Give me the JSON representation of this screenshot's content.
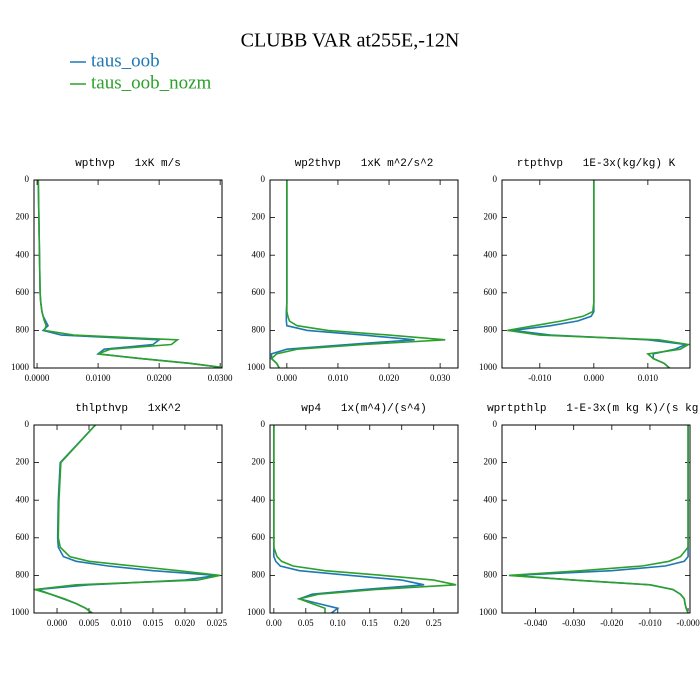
{
  "title": "CLUBB VAR at255E,-12N",
  "chart_data": [
    {
      "type": "line",
      "title": "wpthvp   1xK m/s",
      "y": [
        0,
        200,
        400,
        600,
        650,
        700,
        725,
        750,
        775,
        800,
        825,
        850,
        875,
        900,
        925,
        950,
        975,
        1000
      ],
      "ylim": [
        1000,
        0
      ],
      "yticks": [
        0,
        200,
        400,
        600,
        800,
        1000
      ],
      "xlim": [
        -0.0005,
        0.0303
      ],
      "xticks": [
        {
          "value": 0,
          "label": "0.0000"
        },
        {
          "value": 0.01,
          "label": "0.0100"
        },
        {
          "value": 0.02,
          "label": "0.0200"
        },
        {
          "value": 0.03,
          "label": "0.0300"
        }
      ],
      "series": [
        {
          "name": "taus_oob",
          "color": "#1f77b4",
          "values": [
            0.0002,
            0.0003,
            0.0004,
            0.0005,
            0.0006,
            0.0008,
            0.001,
            0.0014,
            0.0018,
            0.001,
            0.004,
            0.02,
            0.019,
            0.011,
            0.01,
            0.017,
            0.025,
            0.031
          ]
        },
        {
          "name": "taus_oob_nozm",
          "color": "#2ca02c",
          "values": [
            0.0002,
            0.0003,
            0.0004,
            0.0005,
            0.0006,
            0.0008,
            0.001,
            0.0012,
            0.0015,
            0.0012,
            0.006,
            0.023,
            0.022,
            0.012,
            0.01,
            0.017,
            0.025,
            0.031
          ]
        }
      ]
    },
    {
      "type": "line",
      "title": "wp2thvp   1xK m^2/s^2",
      "y": [
        0,
        200,
        400,
        600,
        650,
        700,
        725,
        750,
        775,
        800,
        825,
        850,
        875,
        900,
        925,
        950,
        975,
        1000
      ],
      "ylim": [
        1000,
        0
      ],
      "yticks": [
        0,
        200,
        400,
        600,
        800,
        1000
      ],
      "xlim": [
        -0.0033,
        0.0335
      ],
      "xticks": [
        {
          "value": 0,
          "label": "0.000"
        },
        {
          "value": 0.01,
          "label": "0.010"
        },
        {
          "value": 0.02,
          "label": "0.020"
        },
        {
          "value": 0.03,
          "label": "0.030"
        }
      ],
      "series": [
        {
          "name": "taus_oob",
          "color": "#1f77b4",
          "values": [
            0,
            0,
            0,
            0,
            0,
            -0.0001,
            -0.0001,
            -0.0001,
            0,
            0.004,
            0.015,
            0.025,
            0.012,
            0,
            -0.003,
            -0.003,
            -0.002,
            -0.0015
          ]
        },
        {
          "name": "taus_oob_nozm",
          "color": "#2ca02c",
          "values": [
            0,
            0,
            0,
            0,
            0,
            0,
            0.0002,
            0.0005,
            0.002,
            0.008,
            0.02,
            0.031,
            0.015,
            0.002,
            -0.002,
            -0.003,
            -0.002,
            -0.0015
          ]
        }
      ]
    },
    {
      "type": "line",
      "title": "rtpthvp   1E-3x(kg/kg) K",
      "y": [
        0,
        200,
        400,
        600,
        650,
        700,
        725,
        750,
        775,
        800,
        825,
        850,
        875,
        900,
        925,
        950,
        975,
        1000
      ],
      "ylim": [
        1000,
        0
      ],
      "yticks": [
        0,
        200,
        400,
        600,
        800,
        1000
      ],
      "xlim": [
        -0.017,
        0.0178
      ],
      "xticks": [
        {
          "value": -0.01,
          "label": "-0.010"
        },
        {
          "value": 0,
          "label": "0.000"
        },
        {
          "value": 0.01,
          "label": "0.010"
        }
      ],
      "series": [
        {
          "name": "taus_oob",
          "color": "#1f77b4",
          "values": [
            0,
            0,
            0,
            0,
            0,
            0,
            -0.0005,
            -0.003,
            -0.008,
            -0.015,
            -0.008,
            0.01,
            0.017,
            0.015,
            0.011,
            0.011,
            0.013,
            0.014
          ]
        },
        {
          "name": "taus_oob_nozm",
          "color": "#2ca02c",
          "values": [
            0,
            0,
            0,
            0,
            0,
            -0.0002,
            -0.002,
            -0.006,
            -0.011,
            -0.016,
            -0.01,
            0.012,
            0.0175,
            0.016,
            0.01,
            0.011,
            0.013,
            0.014
          ]
        }
      ]
    },
    {
      "type": "line",
      "title": "thlpthvp   1xK^2",
      "y": [
        0,
        200,
        400,
        600,
        650,
        700,
        725,
        750,
        775,
        800,
        825,
        850,
        875,
        900,
        925,
        950,
        975,
        1000
      ],
      "ylim": [
        1000,
        0
      ],
      "yticks": [
        0,
        200,
        400,
        600,
        800,
        1000
      ],
      "xlim": [
        -0.0036,
        0.0258
      ],
      "xticks": [
        {
          "value": 0,
          "label": "0.000"
        },
        {
          "value": 0.005,
          "label": "0.005"
        },
        {
          "value": 0.01,
          "label": "0.010"
        },
        {
          "value": 0.015,
          "label": "0.015"
        },
        {
          "value": 0.02,
          "label": "0.020"
        },
        {
          "value": 0.025,
          "label": "0.025"
        }
      ],
      "series": [
        {
          "name": "taus_oob",
          "color": "#1f77b4",
          "values": [
            0.006,
            0.0005,
            0.0002,
            0.0001,
            0.0002,
            0.001,
            0.003,
            0.008,
            0.015,
            0.025,
            0.02,
            0.005,
            -0.003,
            -0.001,
            0.001,
            0.003,
            0.0045,
            0.0055
          ]
        },
        {
          "name": "taus_oob_nozm",
          "color": "#2ca02c",
          "values": [
            0.006,
            0.0006,
            0.0003,
            0.0002,
            0.0005,
            0.002,
            0.005,
            0.012,
            0.019,
            0.0255,
            0.022,
            0.003,
            -0.0035,
            -0.001,
            0.0012,
            0.003,
            0.0045,
            0.0055
          ]
        }
      ]
    },
    {
      "type": "line",
      "title": "wp4   1x(m^4)/(s^4)",
      "y": [
        0,
        200,
        400,
        600,
        650,
        700,
        725,
        750,
        775,
        800,
        825,
        850,
        875,
        900,
        925,
        950,
        975,
        1000
      ],
      "ylim": [
        1000,
        0
      ],
      "yticks": [
        0,
        200,
        400,
        600,
        800,
        1000
      ],
      "xlim": [
        -0.006,
        0.288
      ],
      "xticks": [
        {
          "value": 0,
          "label": "0.00"
        },
        {
          "value": 0.05,
          "label": "0.05"
        },
        {
          "value": 0.1,
          "label": "0.10"
        },
        {
          "value": 0.15,
          "label": "0.15"
        },
        {
          "value": 0.2,
          "label": "0.20"
        },
        {
          "value": 0.25,
          "label": "0.25"
        }
      ],
      "series": [
        {
          "name": "taus_oob",
          "color": "#1f77b4",
          "values": [
            0,
            0,
            0,
            0,
            0,
            0,
            0.003,
            0.01,
            0.04,
            0.12,
            0.2,
            0.235,
            0.14,
            0.06,
            0.04,
            0.07,
            0.1,
            0.09
          ]
        },
        {
          "name": "taus_oob_nozm",
          "color": "#2ca02c",
          "values": [
            0,
            0,
            0,
            0,
            0,
            0.005,
            0.012,
            0.03,
            0.08,
            0.17,
            0.25,
            0.285,
            0.16,
            0.07,
            0.04,
            0.06,
            0.08,
            0.08
          ]
        }
      ]
    },
    {
      "type": "line",
      "title": "wprtpthlp   1-E-3x(m kg K)/(s kg)",
      "y": [
        0,
        200,
        400,
        600,
        650,
        700,
        725,
        750,
        775,
        800,
        825,
        850,
        875,
        900,
        925,
        950,
        975,
        1000
      ],
      "ylim": [
        1000,
        0
      ],
      "yticks": [
        0,
        200,
        400,
        600,
        800,
        1000
      ],
      "xlim": [
        -0.0488,
        0.0005
      ],
      "xticks": [
        {
          "value": -0.04,
          "label": "-0.040"
        },
        {
          "value": -0.03,
          "label": "-0.030"
        },
        {
          "value": -0.02,
          "label": "-0.020"
        },
        {
          "value": -0.01,
          "label": "-0.010"
        },
        {
          "value": 0,
          "label": "-0.000"
        }
      ],
      "series": [
        {
          "name": "taus_oob",
          "color": "#1f77b4",
          "values": [
            0,
            0,
            0,
            0,
            0,
            0,
            -0.001,
            -0.006,
            -0.02,
            -0.046,
            -0.03,
            -0.01,
            -0.004,
            -0.002,
            -0.001,
            -0.0008,
            -0.0005,
            0
          ]
        },
        {
          "name": "taus_oob_nozm",
          "color": "#2ca02c",
          "values": [
            0,
            0,
            0,
            0,
            0,
            -0.002,
            -0.005,
            -0.012,
            -0.028,
            -0.047,
            -0.03,
            -0.01,
            -0.004,
            -0.002,
            -0.001,
            -0.0008,
            -0.0005,
            0
          ]
        }
      ]
    }
  ]
}
